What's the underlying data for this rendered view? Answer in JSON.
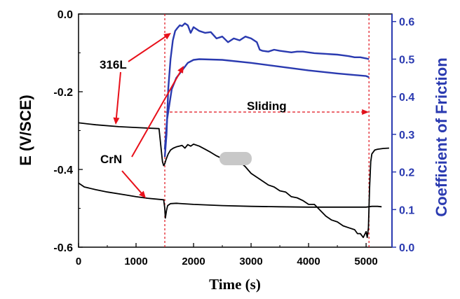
{
  "chart_data": {
    "type": "line",
    "xlabel": "Time (s)",
    "ylabel_left": "E (V/SCE)",
    "ylabel_right": "Coefficient of Friction",
    "xlim": [
      0,
      5450
    ],
    "ylim_left": [
      -0.6,
      0.0
    ],
    "ylim_right": [
      0.0,
      0.62
    ],
    "x_ticks": [
      "0",
      "1000",
      "2000",
      "3000",
      "4000",
      "5000"
    ],
    "y_ticks_left": [
      "0.0",
      "-0.2",
      "-0.4",
      "-0.6"
    ],
    "y_ticks_right": [
      "0.6",
      "0.5",
      "0.4",
      "0.3",
      "0.2",
      "0.1",
      "0.0"
    ],
    "annotations": {
      "label_316L": "316L",
      "label_CrN": "CrN",
      "label_sliding": "Sliding",
      "sliding_start": 1500,
      "sliding_end": 5050
    },
    "colors": {
      "potential": "#000000",
      "friction": "#2a3ab0",
      "arrow": "#e8101a",
      "marker": "#e0101a"
    },
    "series": [
      {
        "name": "316L potential",
        "axis": "left",
        "x": [
          0,
          300,
          700,
          1000,
          1400,
          1460,
          1480,
          1500,
          1520,
          1560,
          1600,
          1650,
          1700,
          1750,
          1800,
          1850,
          1900,
          1950,
          2000,
          2100,
          2200,
          2300,
          2400,
          2500,
          2600,
          2700,
          2800,
          2900,
          3000,
          3100,
          3200,
          3300,
          3400,
          3500,
          3600,
          3700,
          3800,
          3900,
          4000,
          4100,
          4200,
          4300,
          4400,
          4500,
          4600,
          4700,
          4800,
          4850,
          4900,
          4950,
          5000,
          5020,
          5040,
          5060,
          5080,
          5100,
          5150,
          5200,
          5300,
          5400
        ],
        "y": [
          -0.28,
          -0.285,
          -0.29,
          -0.292,
          -0.295,
          -0.38,
          -0.39,
          -0.385,
          -0.375,
          -0.36,
          -0.35,
          -0.345,
          -0.342,
          -0.34,
          -0.338,
          -0.345,
          -0.336,
          -0.34,
          -0.335,
          -0.34,
          -0.348,
          -0.356,
          -0.365,
          -0.372,
          -0.376,
          -0.383,
          -0.38,
          -0.393,
          -0.41,
          -0.42,
          -0.43,
          -0.44,
          -0.445,
          -0.455,
          -0.458,
          -0.47,
          -0.473,
          -0.48,
          -0.49,
          -0.49,
          -0.505,
          -0.52,
          -0.53,
          -0.535,
          -0.545,
          -0.55,
          -0.555,
          -0.565,
          -0.565,
          -0.575,
          -0.56,
          -0.575,
          -0.55,
          -0.45,
          -0.38,
          -0.36,
          -0.35,
          -0.348,
          -0.346,
          -0.345
        ]
      },
      {
        "name": "CrN potential",
        "axis": "left",
        "x": [
          0,
          100,
          300,
          500,
          800,
          1000,
          1200,
          1480,
          1500,
          1510,
          1530,
          1550,
          1600,
          1700,
          2000,
          2500,
          3000,
          3500,
          4000,
          4500,
          5000,
          5100,
          5200,
          5270
        ],
        "y": [
          -0.435,
          -0.445,
          -0.452,
          -0.458,
          -0.465,
          -0.47,
          -0.474,
          -0.478,
          -0.5,
          -0.525,
          -0.505,
          -0.493,
          -0.488,
          -0.487,
          -0.49,
          -0.493,
          -0.495,
          -0.496,
          -0.497,
          -0.497,
          -0.497,
          -0.495,
          -0.495,
          -0.496
        ]
      },
      {
        "name": "316L friction",
        "axis": "right",
        "x": [
          1500,
          1530,
          1560,
          1600,
          1640,
          1680,
          1720,
          1760,
          1800,
          1850,
          1900,
          1950,
          2000,
          2100,
          2200,
          2300,
          2400,
          2500,
          2600,
          2700,
          2800,
          2900,
          3000,
          3100,
          3150,
          3200,
          3300,
          3400,
          3500,
          3600,
          3700,
          3800,
          3900,
          4000,
          4100,
          4200,
          4300,
          4400,
          4500,
          4600,
          4700,
          4800,
          4900,
          5000,
          5050
        ],
        "y": [
          0.24,
          0.3,
          0.42,
          0.5,
          0.55,
          0.575,
          0.583,
          0.59,
          0.588,
          0.595,
          0.59,
          0.57,
          0.585,
          0.575,
          0.57,
          0.572,
          0.555,
          0.56,
          0.545,
          0.555,
          0.55,
          0.56,
          0.555,
          0.545,
          0.525,
          0.522,
          0.52,
          0.525,
          0.522,
          0.52,
          0.518,
          0.52,
          0.52,
          0.518,
          0.516,
          0.515,
          0.514,
          0.513,
          0.512,
          0.51,
          0.508,
          0.505,
          0.505,
          0.502,
          0.5
        ]
      },
      {
        "name": "CrN friction",
        "axis": "right",
        "x": [
          1500,
          1540,
          1580,
          1620,
          1700,
          1800,
          1900,
          2000,
          2100,
          2500,
          3000,
          3500,
          4000,
          4500,
          5000,
          5050
        ],
        "y": [
          0.26,
          0.34,
          0.38,
          0.42,
          0.45,
          0.47,
          0.49,
          0.498,
          0.5,
          0.498,
          0.49,
          0.48,
          0.47,
          0.462,
          0.455,
          0.452
        ]
      }
    ]
  }
}
